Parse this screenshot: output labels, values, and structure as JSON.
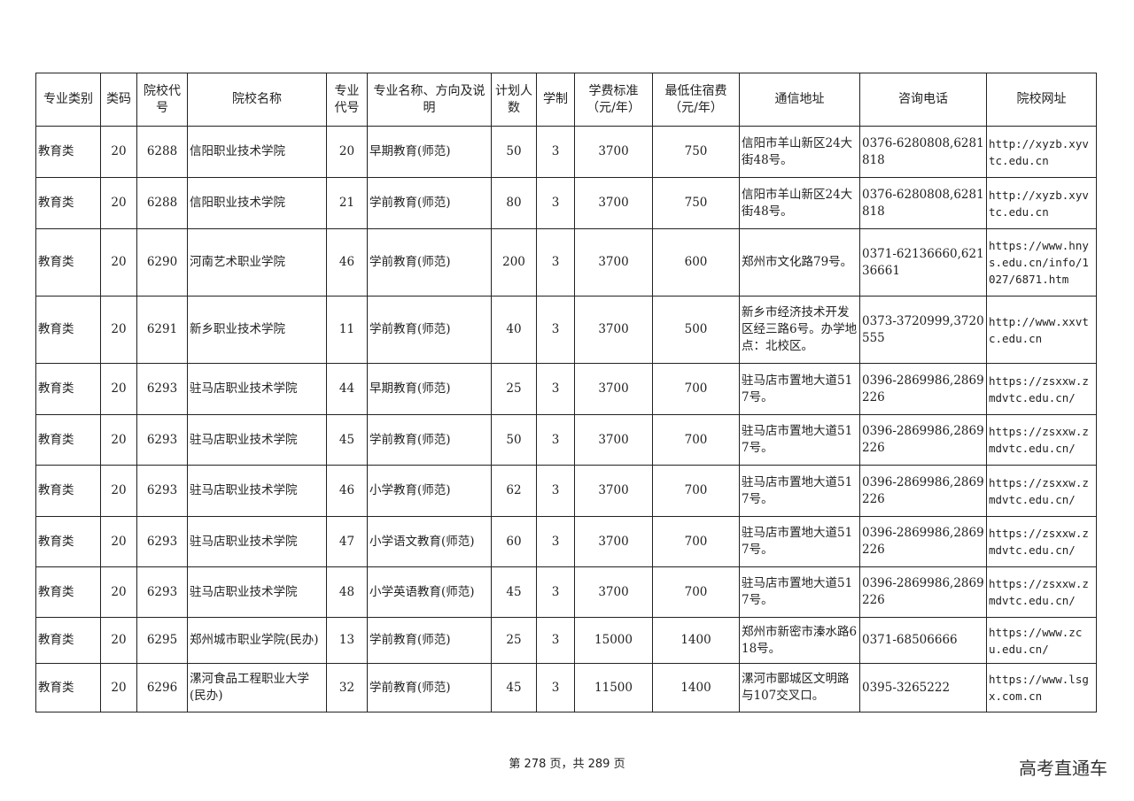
{
  "table": {
    "headers": [
      "专业类别",
      "类码",
      "院校代号",
      "院校名称",
      "专业代号",
      "专业名称、方向及说明",
      "计划人数",
      "学制",
      "学费标准（元/年）",
      "最低住宿费（元/年）",
      "通信地址",
      "咨询电话",
      "院校网址"
    ],
    "rows": [
      [
        "教育类",
        "20",
        "6288",
        "信阳职业技术学院",
        "20",
        "早期教育(师范)",
        "50",
        "3",
        "3700",
        "750",
        "信阳市羊山新区24大街48号。",
        "0376-6280808,6281818",
        "http://xyzb.xyvtc.edu.cn"
      ],
      [
        "教育类",
        "20",
        "6288",
        "信阳职业技术学院",
        "21",
        "学前教育(师范)",
        "80",
        "3",
        "3700",
        "750",
        "信阳市羊山新区24大街48号。",
        "0376-6280808,6281818",
        "http://xyzb.xyvtc.edu.cn"
      ],
      [
        "教育类",
        "20",
        "6290",
        "河南艺术职业学院",
        "46",
        "学前教育(师范)",
        "200",
        "3",
        "3700",
        "600",
        "郑州市文化路79号。",
        "0371-62136660,62136661",
        "https://www.hnys.edu.cn/info/1027/6871.htm"
      ],
      [
        "教育类",
        "20",
        "6291",
        "新乡职业技术学院",
        "11",
        "学前教育(师范)",
        "40",
        "3",
        "3700",
        "500",
        "新乡市经济技术开发区经三路6号。办学地点：北校区。",
        "0373-3720999,3720555",
        "http://www.xxvtc.edu.cn"
      ],
      [
        "教育类",
        "20",
        "6293",
        "驻马店职业技术学院",
        "44",
        "早期教育(师范)",
        "25",
        "3",
        "3700",
        "700",
        "驻马店市置地大道517号。",
        "0396-2869986,2869226",
        "https://zsxxw.zmdvtc.edu.cn/"
      ],
      [
        "教育类",
        "20",
        "6293",
        "驻马店职业技术学院",
        "45",
        "学前教育(师范)",
        "50",
        "3",
        "3700",
        "700",
        "驻马店市置地大道517号。",
        "0396-2869986,2869226",
        "https://zsxxw.zmdvtc.edu.cn/"
      ],
      [
        "教育类",
        "20",
        "6293",
        "驻马店职业技术学院",
        "46",
        "小学教育(师范)",
        "62",
        "3",
        "3700",
        "700",
        "驻马店市置地大道517号。",
        "0396-2869986,2869226",
        "https://zsxxw.zmdvtc.edu.cn/"
      ],
      [
        "教育类",
        "20",
        "6293",
        "驻马店职业技术学院",
        "47",
        "小学语文教育(师范)",
        "60",
        "3",
        "3700",
        "700",
        "驻马店市置地大道517号。",
        "0396-2869986,2869226",
        "https://zsxxw.zmdvtc.edu.cn/"
      ],
      [
        "教育类",
        "20",
        "6293",
        "驻马店职业技术学院",
        "48",
        "小学英语教育(师范)",
        "45",
        "3",
        "3700",
        "700",
        "驻马店市置地大道517号。",
        "0396-2869986,2869226",
        "https://zsxxw.zmdvtc.edu.cn/"
      ],
      [
        "教育类",
        "20",
        "6295",
        "郑州城市职业学院(民办)",
        "13",
        "学前教育(师范)",
        "25",
        "3",
        "15000",
        "1400",
        "郑州市新密市溱水路618号。",
        "0371-68506666",
        "https://www.zcu.edu.cn/"
      ],
      [
        "教育类",
        "20",
        "6296",
        "漯河食品工程职业大学(民办)",
        "32",
        "学前教育(师范)",
        "45",
        "3",
        "11500",
        "1400",
        "漯河市郾城区文明路与107交叉口。",
        "0395-3265222",
        "https://www.lsgx.com.cn"
      ]
    ]
  },
  "footer": {
    "page_text": "第 278 页，共 289 页"
  },
  "brand": "高考直通车"
}
